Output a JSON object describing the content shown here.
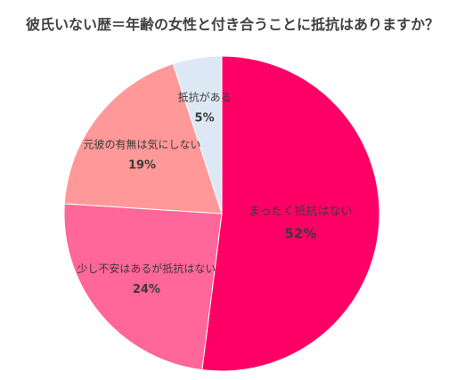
{
  "chart_data": {
    "type": "pie",
    "title": "彼氏いない歴＝年齢の女性と付き合うことに抵抗はありますか？",
    "slices": [
      {
        "label": "まったく抵抗はない",
        "value": 52,
        "value_text": "52%",
        "color": "#ff0066"
      },
      {
        "label": "少し不安はあるが抵抗はない",
        "value": 24,
        "value_text": "24%",
        "color": "#ff6699"
      },
      {
        "label": "元彼の有無は気にしない",
        "value": 19,
        "value_text": "19%",
        "color": "#ff9999"
      },
      {
        "label": "抵抗がある",
        "value": 5,
        "value_text": "5%",
        "color": "#dde8f5"
      }
    ],
    "start": "12 o'clock",
    "direction": "clockwise",
    "legend": "none"
  }
}
